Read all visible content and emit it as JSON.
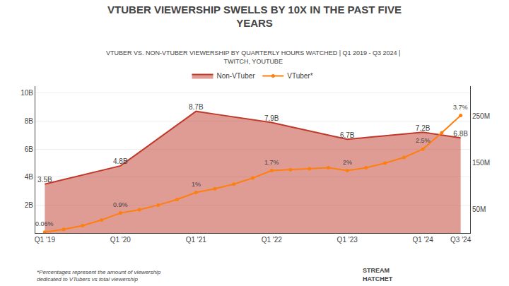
{
  "chart_data": {
    "type": "line",
    "title": "VTUBER VIEWERSHIP SWELLS BY 10X IN THE PAST FIVE\nYEARS",
    "subtitle": "VTUBER VS. NON-VTUBER VIEWERSHIP BY QUARTERLY HOURS WATCHED | Q1 2019 - Q3 2024 |\nTWITCH, YOUTUBE",
    "footnote": "*Percentages represent the amount of viewership\ndedicated to VTubers vs total viewership",
    "logo": "STREAM\nHATCHET",
    "categories": [
      "Q1 '19",
      null,
      null,
      null,
      "Q1 '20",
      null,
      null,
      null,
      "Q1 '21",
      null,
      null,
      null,
      "Q1 '22",
      null,
      null,
      null,
      "Q1 '23",
      null,
      null,
      null,
      "Q1 '24",
      null,
      "Q3 '24"
    ],
    "series": [
      {
        "name": "Non-VTuber",
        "type": "area",
        "color": "#c0392b",
        "values": [
          3.5,
          3.825,
          4.15,
          4.475,
          4.8,
          5.775,
          6.75,
          7.725,
          8.7,
          8.5,
          8.3,
          8.1,
          7.9,
          7.6,
          7.3,
          7.0,
          6.7,
          6.825,
          6.95,
          7.075,
          7.2,
          7.0,
          6.8
        ],
        "data_labels": true,
        "value_labels": [
          "3.5B",
          null,
          null,
          null,
          "4.8B",
          null,
          null,
          null,
          "8.7B",
          null,
          null,
          null,
          "7.9B",
          null,
          null,
          null,
          "6.7B",
          null,
          null,
          null,
          "7.2B",
          null,
          "6.8B"
        ]
      },
      {
        "name": "VTuber*",
        "type": "line",
        "marker": "circle",
        "axis": "y2",
        "values": [
          2,
          8,
          16,
          28,
          43,
          50,
          60,
          72,
          87,
          95,
          105,
          118,
          134,
          136,
          138,
          140,
          134,
          140,
          150,
          162,
          180,
          215,
          252
        ]
      }
    ],
    "annotations": [
      {
        "x": 0,
        "y": 2,
        "text": "0.06%",
        "axis": "y2"
      },
      {
        "x": 4,
        "y": 43,
        "text": "0.9%",
        "axis": "y2"
      },
      {
        "x": 8,
        "y": 87,
        "text": "1%",
        "axis": "y2"
      },
      {
        "x": 12,
        "y": 134,
        "text": "1.7%",
        "axis": "y2"
      },
      {
        "x": 16,
        "y": 134,
        "text": "2%",
        "axis": "y2"
      },
      {
        "x": 20,
        "y": 180,
        "text": "2.5%",
        "axis": "y2"
      },
      {
        "x": 22,
        "y": 252,
        "text": "3.7%",
        "axis": "y2"
      }
    ],
    "ylim": [
      0,
      10.5
    ],
    "yticks": [
      {
        "value": 2,
        "label": "2B"
      },
      {
        "value": 4,
        "label": "4B"
      },
      {
        "value": 6,
        "label": "6B"
      },
      {
        "value": 8,
        "label": "8B"
      },
      {
        "value": 10,
        "label": "10B"
      }
    ],
    "y2lim": [
      0,
      315
    ],
    "y2ticks": [
      {
        "value": 50,
        "label": "50M"
      },
      {
        "value": 150,
        "label": "150M"
      },
      {
        "value": 250,
        "label": "250M"
      }
    ],
    "grid": true,
    "legend": "top"
  }
}
